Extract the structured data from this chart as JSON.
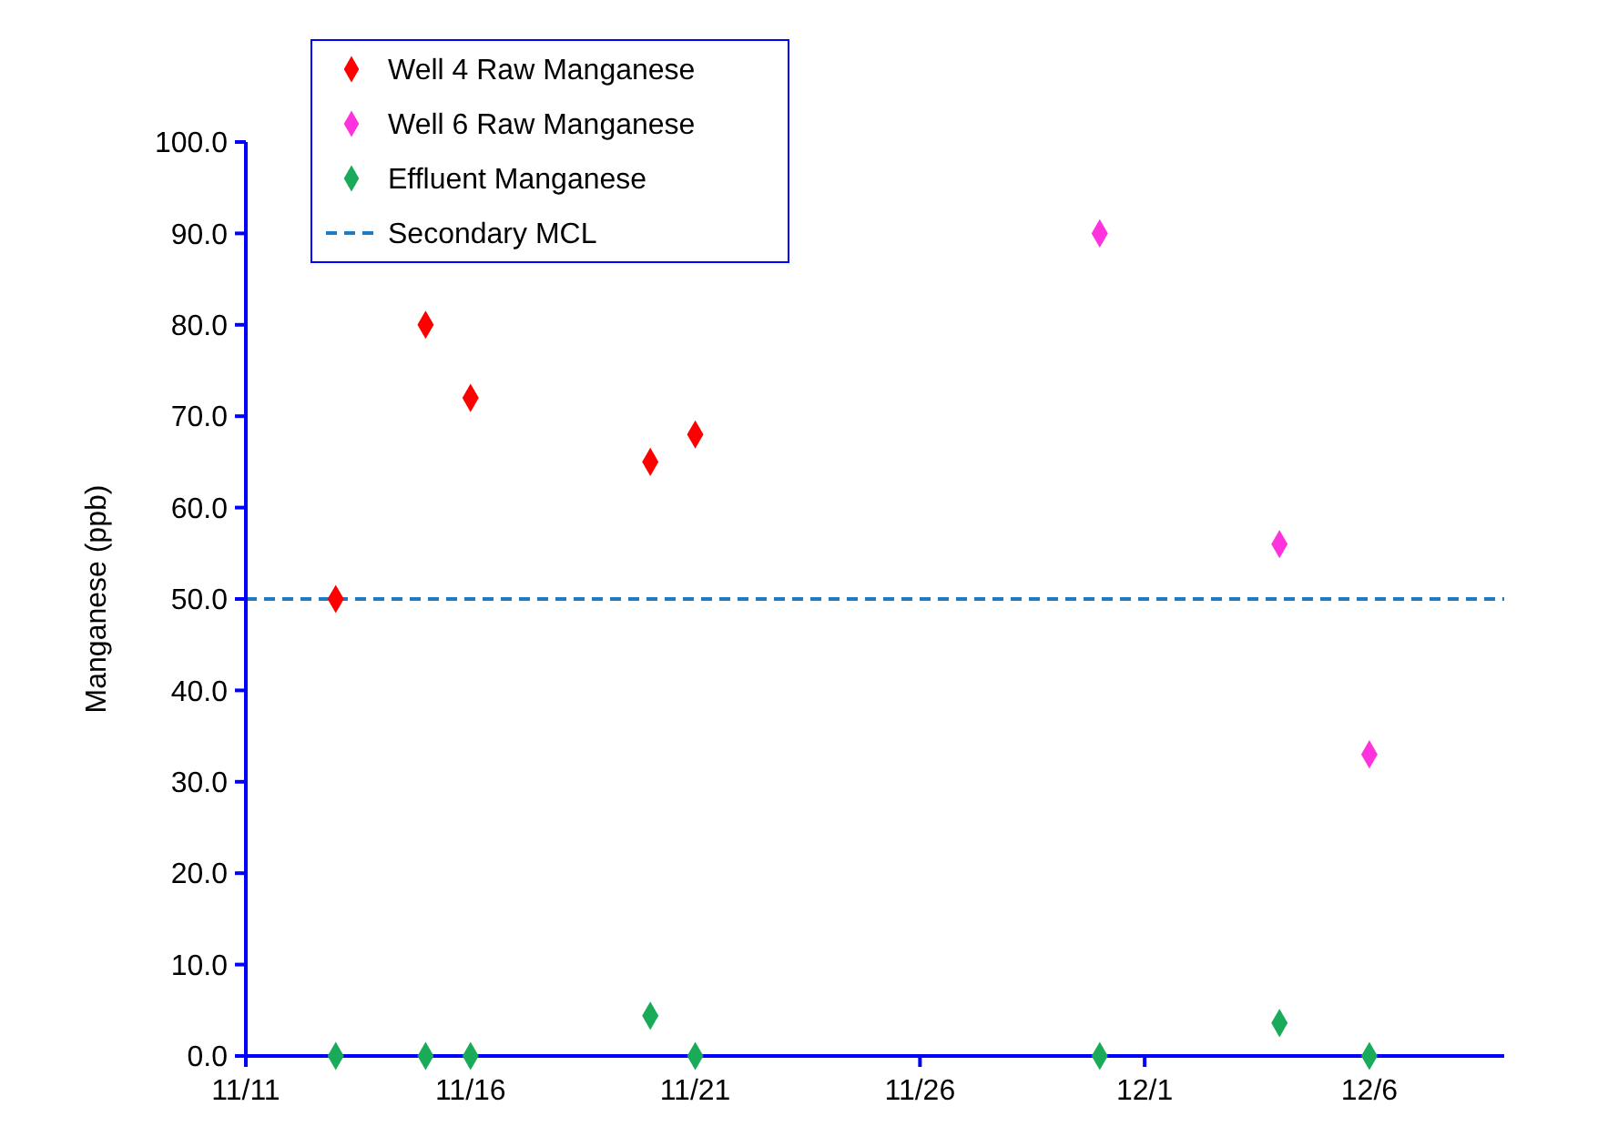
{
  "chart_data": {
    "type": "scatter",
    "ylabel": "Manganese (ppb)",
    "marker": "diamond",
    "legend": "top left",
    "grid": false,
    "xlim": [
      "--11-11",
      "--12-09"
    ],
    "xticks": [
      {
        "value": "--11-11",
        "label": "11/11"
      },
      {
        "value": "--11-16",
        "label": "11/16"
      },
      {
        "value": "--11-21",
        "label": "11/21"
      },
      {
        "value": "--11-26",
        "label": "11/26"
      },
      {
        "value": "--12-01",
        "label": "12/1"
      },
      {
        "value": "--12-06",
        "label": "12/6"
      }
    ],
    "ylim": [
      0,
      100
    ],
    "yticks": [
      {
        "value": 0,
        "label": "0.0"
      },
      {
        "value": 10,
        "label": "10.0"
      },
      {
        "value": 20,
        "label": "20.0"
      },
      {
        "value": 30,
        "label": "30.0"
      },
      {
        "value": 40,
        "label": "40.0"
      },
      {
        "value": 50,
        "label": "50.0"
      },
      {
        "value": 60,
        "label": "60.0"
      },
      {
        "value": 70,
        "label": "70.0"
      },
      {
        "value": 80,
        "label": "80.0"
      },
      {
        "value": 90,
        "label": "90.0"
      },
      {
        "value": 100,
        "label": "100.0"
      }
    ],
    "series": [
      {
        "name": "Well 4 Raw Manganese",
        "color": "#ff0000",
        "x": [
          "--11-13",
          "--11-15",
          "--11-16",
          "--11-20",
          "--11-21"
        ],
        "values": [
          50,
          80,
          72,
          65,
          68
        ]
      },
      {
        "name": "Well 6 Raw Manganese",
        "color": "#ff33dd",
        "x": [
          "--11-30",
          "--12-04",
          "--12-06"
        ],
        "values": [
          90,
          56,
          33
        ]
      },
      {
        "name": "Effluent Manganese",
        "color": "#1aab5a",
        "x": [
          "--11-13",
          "--11-15",
          "--11-16",
          "--11-20",
          "--11-21",
          "--11-30",
          "--12-04",
          "--12-06"
        ],
        "values": [
          0,
          0,
          0,
          4.4,
          0,
          0,
          3.6,
          0
        ]
      }
    ],
    "ref_lines": [
      {
        "axis": "y",
        "value": 50,
        "label": "Secondary MCL",
        "color": "#1f7ac4",
        "line_style": "dashed"
      }
    ]
  }
}
